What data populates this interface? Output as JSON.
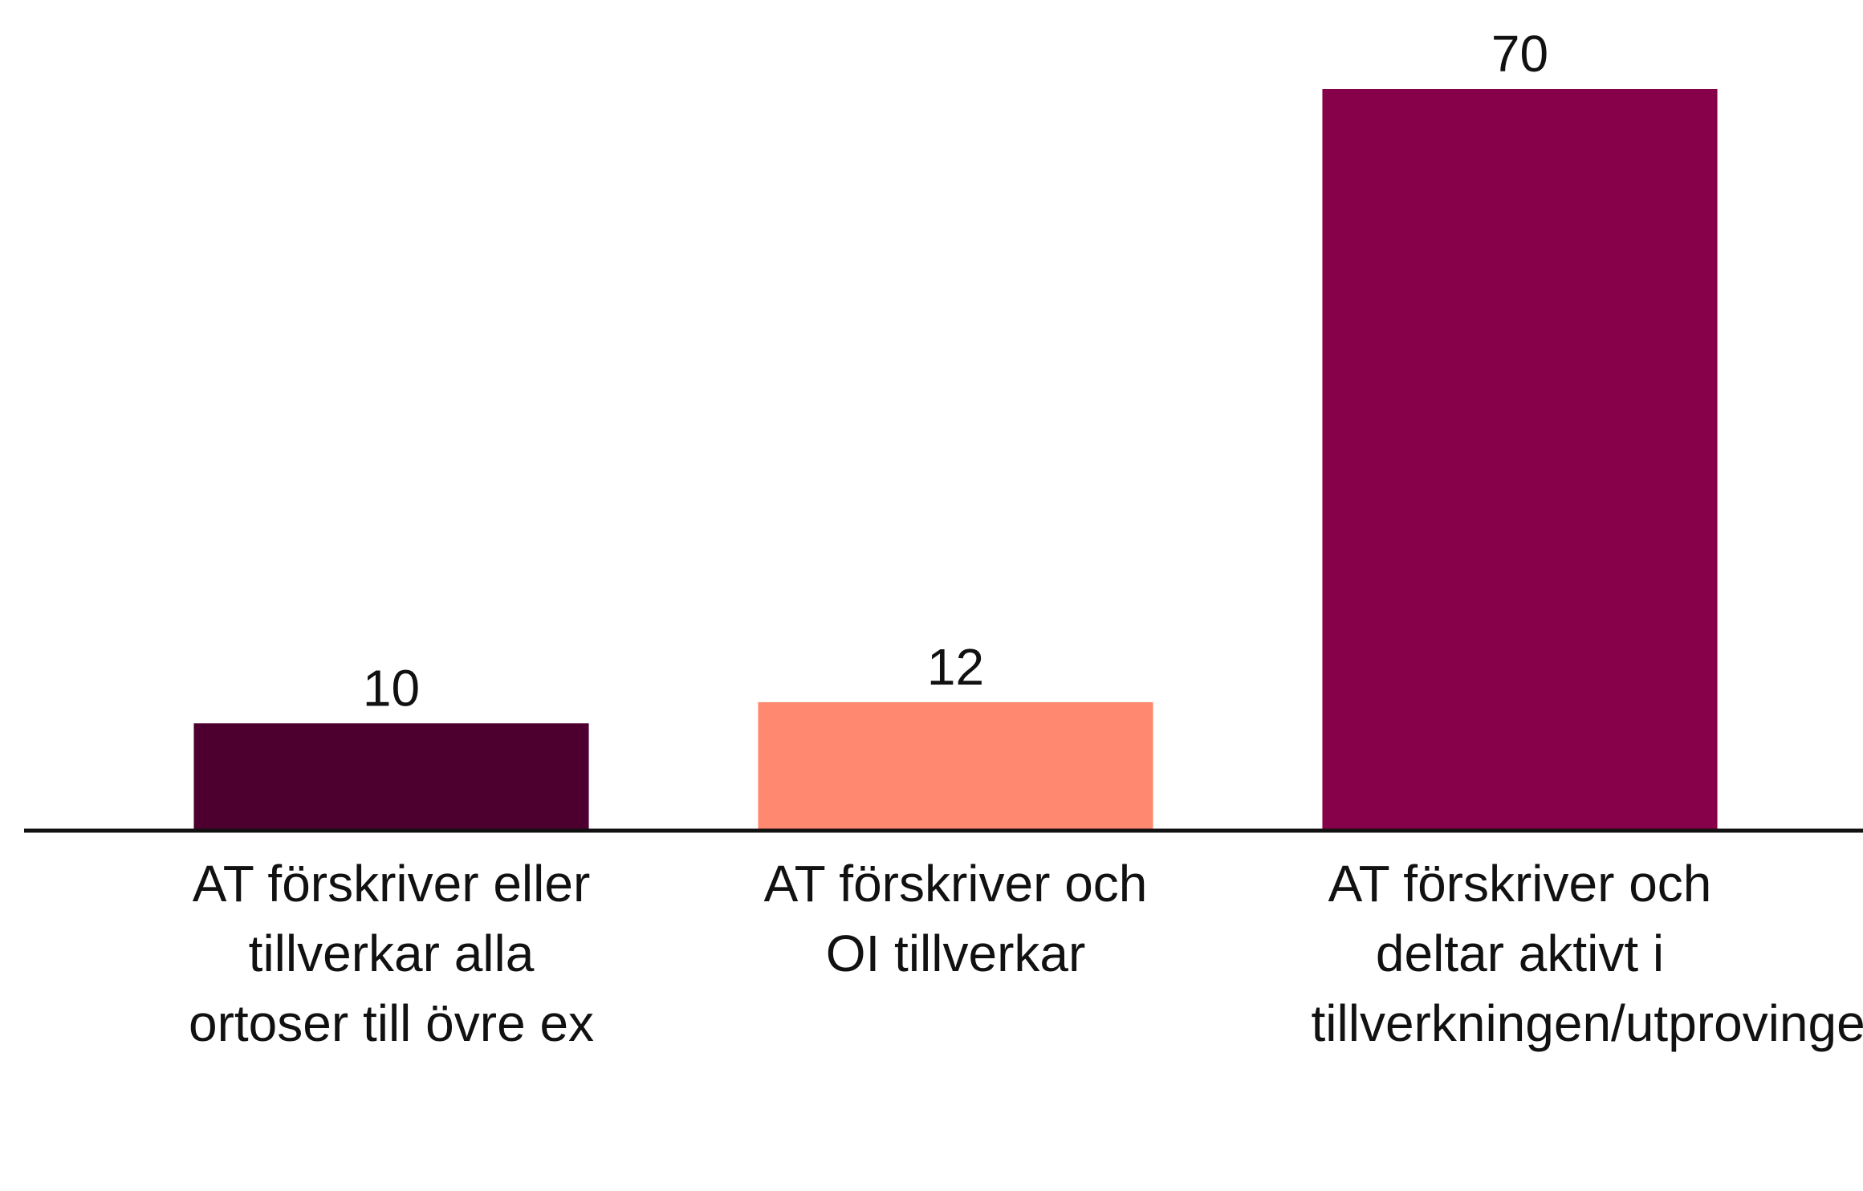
{
  "chart_data": {
    "type": "bar",
    "categories": [
      "AT förskriver eller tillverkar alla ortoser till övre ex",
      "AT förskriver och OI tillverkar",
      "AT förskriver och deltar aktivt i tillverkningen/utprovingen"
    ],
    "values": [
      10,
      12,
      70
    ],
    "colors": [
      "#4d0030",
      "#ff8870",
      "#87004a"
    ],
    "ylim": [
      0,
      70
    ]
  }
}
